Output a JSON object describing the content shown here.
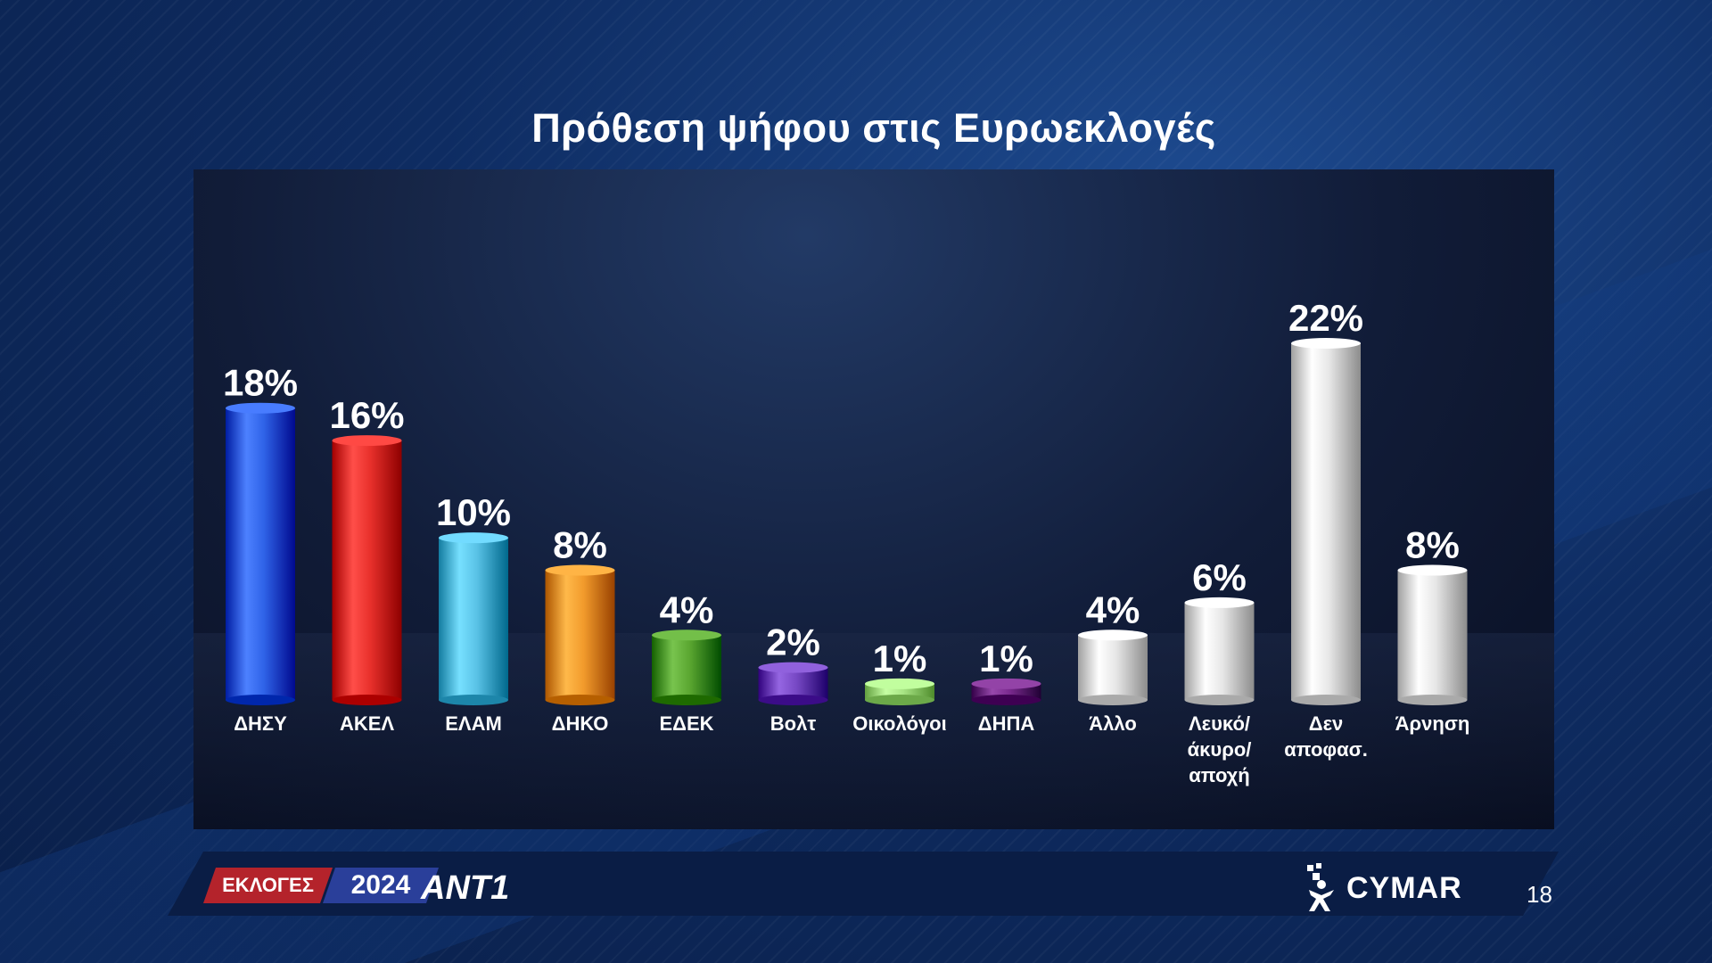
{
  "title": "Πρόθεση ψήφου στις Ευρωεκλογές",
  "chart_data": {
    "type": "bar",
    "categories": [
      "ΔΗΣΥ",
      "ΑΚΕΛ",
      "ΕΛΑΜ",
      "ΔΗΚΟ",
      "ΕΔΕΚ",
      "Βολτ",
      "Οικολόγοι",
      "ΔΗΠΑ",
      "Άλλο",
      "Λευκό/ άκυρο/ αποχή",
      "Δεν αποφασ.",
      "Άρνηση"
    ],
    "values": [
      18,
      16,
      10,
      8,
      4,
      2,
      1,
      1,
      4,
      6,
      22,
      8
    ],
    "value_labels": [
      "18%",
      "16%",
      "10%",
      "8%",
      "4%",
      "2%",
      "1%",
      "1%",
      "4%",
      "6%",
      "22%",
      "8%"
    ],
    "label_lines": [
      [
        "ΔΗΣΥ"
      ],
      [
        "ΑΚΕΛ"
      ],
      [
        "ΕΛΑΜ"
      ],
      [
        "ΔΗΚΟ"
      ],
      [
        "ΕΔΕΚ"
      ],
      [
        "Βολτ"
      ],
      [
        "Οικολόγοι"
      ],
      [
        "ΔΗΠΑ"
      ],
      [
        "Άλλο"
      ],
      [
        "Λευκό/",
        "άκυρο/",
        "αποχή"
      ],
      [
        "Δεν",
        "αποφασ."
      ],
      [
        "Άρνηση"
      ]
    ],
    "colors": [
      "#2f63e8",
      "#e8302b",
      "#59c2e6",
      "#f29b2c",
      "#5aa630",
      "#7748c4",
      "#a8e585",
      "#7a2a8e",
      "#e6e6e6",
      "#e6e6e6",
      "#e6e6e6",
      "#e6e6e6"
    ],
    "unit": "%",
    "ylim": [
      0,
      22
    ],
    "grid": false,
    "legend": "none"
  },
  "footer": {
    "election_badge": "ΕΚΛΟΓΕΣ",
    "year_badge": "2024",
    "channel_logo": "ΑΝΤ1",
    "brand": "CYMAR",
    "page_number": "18"
  },
  "icons": {
    "channel": "ant1-logo-icon",
    "brand": "cymar-figure-icon"
  }
}
